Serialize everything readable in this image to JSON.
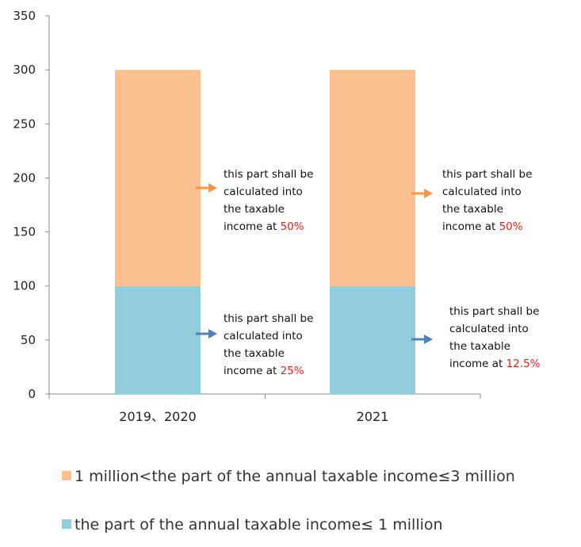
{
  "chart_data": {
    "type": "bar",
    "stacked": true,
    "categories": [
      "2019、2020",
      "2021"
    ],
    "series": [
      {
        "name": "the part of the annual taxable income≤ 1 million",
        "values": [
          100,
          100
        ],
        "color": "#92cddc"
      },
      {
        "name": "1 million<the part of the annual taxable income≤3 million",
        "values": [
          200,
          200
        ],
        "color": "#fac090"
      }
    ],
    "y_ticks": [
      "0",
      "50",
      "100",
      "150",
      "200",
      "250",
      "300",
      "350"
    ],
    "ylim": [
      0,
      350
    ],
    "grid": false,
    "legend_position": "bottom",
    "title": "",
    "xlabel": "",
    "ylabel": "",
    "annotations": [
      {
        "category": "2019、2020",
        "segment": "upper",
        "arrow_color": "#f79646",
        "lines": [
          "this part shall be",
          "calculated into",
          "the taxable"
        ],
        "last_prefix": "income at ",
        "highlight": "50%"
      },
      {
        "category": "2019、2020",
        "segment": "lower",
        "arrow_color": "#4f81bd",
        "lines": [
          "this part shall be",
          "calculated into",
          "the taxable"
        ],
        "last_prefix": "income at ",
        "highlight": "25%"
      },
      {
        "category": "2021",
        "segment": "upper",
        "arrow_color": "#f79646",
        "lines": [
          "this part shall be",
          "calculated into",
          "the taxable"
        ],
        "last_prefix": "income at ",
        "highlight": "50%"
      },
      {
        "category": "2021",
        "segment": "lower",
        "arrow_color": "#4f81bd",
        "lines": [
          "this part shall be",
          "calculated into",
          "the taxable"
        ],
        "last_prefix": "income at ",
        "highlight": "12.5%"
      }
    ],
    "highlight_color": "#e8211d"
  }
}
